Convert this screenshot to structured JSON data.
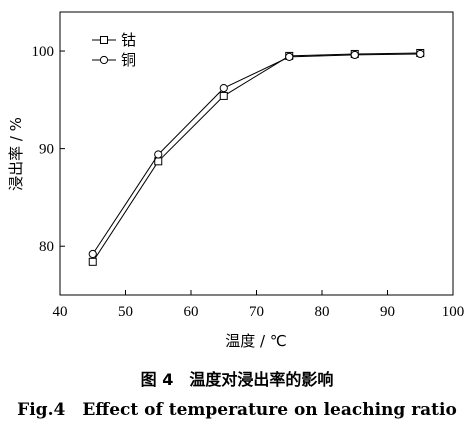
{
  "chart_data": {
    "type": "line",
    "xlabel": "温度 / ℃",
    "ylabel": "浸出率 / %",
    "xlim": [
      40,
      100
    ],
    "ylim": [
      75,
      104
    ],
    "xticks": [
      40,
      50,
      60,
      70,
      80,
      90,
      100
    ],
    "yticks": [
      80,
      90,
      100
    ],
    "grid": false,
    "legend_position": "top-left",
    "x": [
      45,
      55,
      65,
      75,
      85,
      95
    ],
    "series": [
      {
        "name": "钴",
        "marker": "square",
        "values": [
          78.4,
          88.7,
          95.4,
          99.5,
          99.7,
          99.8
        ]
      },
      {
        "name": "铜",
        "marker": "circle",
        "values": [
          79.2,
          89.4,
          96.2,
          99.4,
          99.6,
          99.7
        ]
      }
    ]
  },
  "caption": {
    "zh": "图 4　温度对浸出率的影响",
    "en": "Fig.4　Effect of temperature on leaching ratio"
  }
}
